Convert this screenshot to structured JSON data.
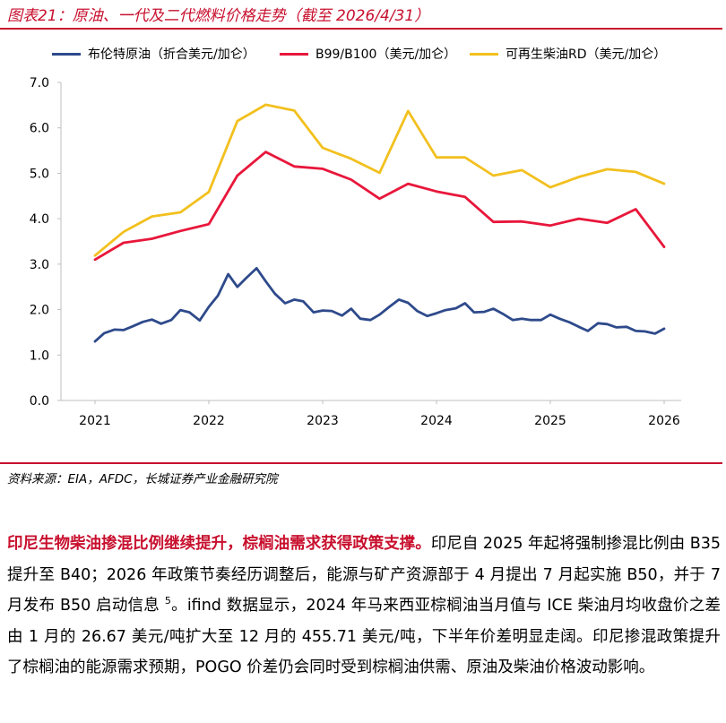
{
  "figure": {
    "title": "图表21：原油、一代及二代燃料价格走势（截至 2026/4/31）",
    "source": "资料来源：EIA，AFDC，长城证券产业金融研究院"
  },
  "colors": {
    "accent": "#c8102e",
    "brent": "#2e4a8b",
    "b99": "#e8173b",
    "rd": "#f2c01e",
    "axis": "#bfbfbf"
  },
  "chart_data": {
    "type": "line",
    "xlim": [
      2021,
      2026
    ],
    "ylim": [
      0,
      7
    ],
    "x_ticks": [
      "2021",
      "2022",
      "2023",
      "2024",
      "2025",
      "2026"
    ],
    "y_ticks": [
      "0.0",
      "1.0",
      "2.0",
      "3.0",
      "4.0",
      "5.0",
      "6.0",
      "7.0"
    ],
    "grid": false,
    "legend_position": "top",
    "series": [
      {
        "name": "布伦特原油（折合美元/加仑）",
        "color": "#2e4a8b",
        "points": [
          [
            2021.0,
            1.3
          ],
          [
            2021.08,
            1.48
          ],
          [
            2021.17,
            1.56
          ],
          [
            2021.25,
            1.55
          ],
          [
            2021.33,
            1.63
          ],
          [
            2021.42,
            1.73
          ],
          [
            2021.5,
            1.78
          ],
          [
            2021.58,
            1.69
          ],
          [
            2021.67,
            1.77
          ],
          [
            2021.75,
            1.99
          ],
          [
            2021.83,
            1.94
          ],
          [
            2021.92,
            1.76
          ],
          [
            2022.0,
            2.06
          ],
          [
            2022.08,
            2.31
          ],
          [
            2022.17,
            2.78
          ],
          [
            2022.25,
            2.5
          ],
          [
            2022.33,
            2.7
          ],
          [
            2022.42,
            2.91
          ],
          [
            2022.5,
            2.62
          ],
          [
            2022.58,
            2.35
          ],
          [
            2022.67,
            2.14
          ],
          [
            2022.75,
            2.22
          ],
          [
            2022.83,
            2.18
          ],
          [
            2022.92,
            1.94
          ],
          [
            2023.0,
            1.98
          ],
          [
            2023.08,
            1.97
          ],
          [
            2023.17,
            1.87
          ],
          [
            2023.25,
            2.02
          ],
          [
            2023.33,
            1.8
          ],
          [
            2023.42,
            1.77
          ],
          [
            2023.5,
            1.89
          ],
          [
            2023.58,
            2.05
          ],
          [
            2023.67,
            2.22
          ],
          [
            2023.75,
            2.15
          ],
          [
            2023.83,
            1.97
          ],
          [
            2023.92,
            1.86
          ],
          [
            2024.0,
            1.92
          ],
          [
            2024.08,
            1.99
          ],
          [
            2024.17,
            2.03
          ],
          [
            2024.25,
            2.14
          ],
          [
            2024.33,
            1.94
          ],
          [
            2024.42,
            1.95
          ],
          [
            2024.5,
            2.02
          ],
          [
            2024.58,
            1.91
          ],
          [
            2024.67,
            1.77
          ],
          [
            2024.75,
            1.8
          ],
          [
            2024.83,
            1.77
          ],
          [
            2024.92,
            1.77
          ],
          [
            2025.0,
            1.89
          ],
          [
            2025.08,
            1.8
          ],
          [
            2025.17,
            1.72
          ],
          [
            2025.25,
            1.62
          ],
          [
            2025.33,
            1.53
          ],
          [
            2025.42,
            1.7
          ],
          [
            2025.5,
            1.68
          ],
          [
            2025.58,
            1.61
          ],
          [
            2025.67,
            1.62
          ],
          [
            2025.75,
            1.53
          ],
          [
            2025.83,
            1.52
          ],
          [
            2025.92,
            1.47
          ],
          [
            2026.0,
            1.58
          ]
        ]
      },
      {
        "name": "B99/B100（美元/加仑）",
        "color": "#e8173b",
        "points": [
          [
            2021.0,
            3.1
          ],
          [
            2021.25,
            3.47
          ],
          [
            2021.5,
            3.56
          ],
          [
            2021.75,
            3.73
          ],
          [
            2022.0,
            3.88
          ],
          [
            2022.25,
            4.95
          ],
          [
            2022.5,
            5.47
          ],
          [
            2022.75,
            5.15
          ],
          [
            2023.0,
            5.1
          ],
          [
            2023.25,
            4.86
          ],
          [
            2023.5,
            4.44
          ],
          [
            2023.75,
            4.77
          ],
          [
            2024.0,
            4.6
          ],
          [
            2024.25,
            4.48
          ],
          [
            2024.5,
            3.93
          ],
          [
            2024.75,
            3.94
          ],
          [
            2025.0,
            3.85
          ],
          [
            2025.25,
            4.0
          ],
          [
            2025.5,
            3.91
          ],
          [
            2025.75,
            4.21
          ],
          [
            2026.0,
            3.38
          ]
        ]
      },
      {
        "name": "可再生柴油RD（美元/加仑）",
        "color": "#f2c01e",
        "points": [
          [
            2021.0,
            3.19
          ],
          [
            2021.25,
            3.71
          ],
          [
            2021.5,
            4.05
          ],
          [
            2021.75,
            4.14
          ],
          [
            2022.0,
            4.59
          ],
          [
            2022.25,
            6.15
          ],
          [
            2022.5,
            6.51
          ],
          [
            2022.75,
            6.38
          ],
          [
            2023.0,
            5.56
          ],
          [
            2023.25,
            5.32
          ],
          [
            2023.5,
            5.01
          ],
          [
            2023.75,
            6.37
          ],
          [
            2024.0,
            5.35
          ],
          [
            2024.25,
            5.35
          ],
          [
            2024.5,
            4.95
          ],
          [
            2024.75,
            5.07
          ],
          [
            2025.0,
            4.69
          ],
          [
            2025.25,
            4.92
          ],
          [
            2025.5,
            5.09
          ],
          [
            2025.75,
            5.03
          ],
          [
            2026.0,
            4.77
          ]
        ]
      }
    ]
  },
  "body": {
    "lead": "印尼生物柴油掺混比例继续提升，棕榈油需求获得政策支撑。",
    "text1": "印尼自 2025 年起将强制掺混比例由 B35 提升至 B40；2026 年政策节奏经历调整后，能源与矿产资源部于 4 月提出 7 月起实施 B50，并于 7 月发布 B50 启动信息 ",
    "footnote": "5",
    "text2": "。ifind 数据显示，2024 年马来西亚棕榈油当月值与 ICE 柴油月均收盘价之差由 1 月的 26.67 美元/吨扩大至 12 月的 455.71 美元/吨，下半年价差明显走阔。印尼掺混政策提升了棕榈油的能源需求预期，POGO 价差仍会同时受到棕榈油供需、原油及柴油价格波动影响。"
  }
}
